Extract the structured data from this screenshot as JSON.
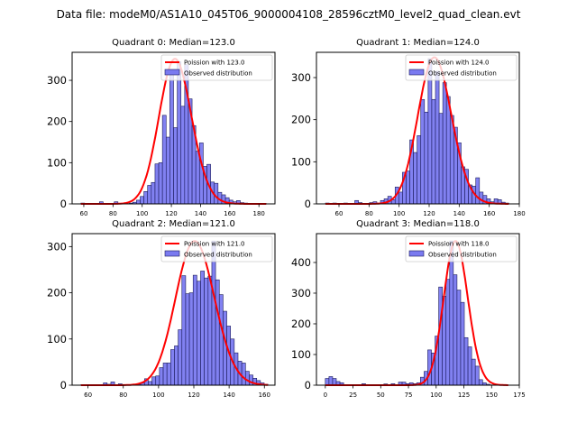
{
  "figure": {
    "suptitle": "Data file: modeM0/AS1A10_045T06_9000004108_28596cztM0_level2_quad_clean.evt"
  },
  "colors": {
    "bar_fill": "#7a7af0",
    "bar_edge": "#1a1a5a",
    "fit_line": "#ff0000"
  },
  "chart_data": [
    {
      "type": "bar",
      "title": "Quadrant 0: Median=123.0",
      "xlabel": "",
      "ylabel": "",
      "xlim": [
        52,
        191
      ],
      "ylim": [
        0,
        368
      ],
      "xticks": [
        60,
        80,
        100,
        120,
        140,
        160,
        180
      ],
      "yticks": [
        0,
        100,
        200,
        300
      ],
      "legend": {
        "position": "top-right",
        "entries": [
          "Poission with 123.0",
          "Observed distribution"
        ]
      },
      "grid": false,
      "bin_start": 58,
      "bin_width": 2.54,
      "bins": [
        2,
        0,
        0,
        0,
        0,
        5,
        0,
        0,
        0,
        5,
        0,
        0,
        0,
        2,
        4,
        9,
        18,
        30,
        45,
        52,
        97,
        100,
        215,
        162,
        315,
        185,
        345,
        237,
        338,
        255,
        190,
        128,
        148,
        91,
        96,
        53,
        50,
        28,
        22,
        15,
        9,
        5,
        8,
        3,
        2,
        1,
        0,
        0,
        1,
        1
      ],
      "poisson_mean": 123.0,
      "poisson_scale": 352
    },
    {
      "type": "bar",
      "title": "Quadrant 1: Median=124.0",
      "xlabel": "",
      "ylabel": "",
      "xlim": [
        45,
        180
      ],
      "ylim": [
        0,
        360
      ],
      "xticks": [
        60,
        80,
        100,
        120,
        140,
        160,
        180
      ],
      "yticks": [
        0,
        100,
        200,
        300
      ],
      "legend": {
        "position": "top-right",
        "entries": [
          "Poission with 124.0",
          "Observed distribution"
        ]
      },
      "grid": false,
      "bin_start": 51,
      "bin_width": 2.44,
      "bins": [
        2,
        0,
        2,
        0,
        1,
        2,
        0,
        0,
        8,
        3,
        0,
        0,
        3,
        5,
        2,
        8,
        12,
        18,
        10,
        40,
        28,
        75,
        78,
        152,
        122,
        162,
        248,
        218,
        345,
        248,
        315,
        215,
        288,
        255,
        210,
        182,
        145,
        88,
        82,
        45,
        42,
        62,
        28,
        20,
        12,
        5,
        12,
        10,
        4,
        2
      ],
      "poisson_mean": 124.0,
      "poisson_scale": 348
    },
    {
      "type": "bar",
      "title": "Quadrant 2: Median=121.0",
      "xlabel": "",
      "ylabel": "",
      "xlim": [
        51,
        166
      ],
      "ylim": [
        0,
        328
      ],
      "xticks": [
        60,
        80,
        100,
        120,
        140,
        160
      ],
      "yticks": [
        0,
        100,
        200,
        300
      ],
      "legend": {
        "position": "top-right",
        "entries": [
          "Poission with 121.0",
          "Observed distribution"
        ]
      },
      "grid": false,
      "bin_start": 56,
      "bin_width": 2.12,
      "bins": [
        1,
        0,
        0,
        0,
        0,
        0,
        5,
        2,
        7,
        0,
        3,
        0,
        0,
        0,
        0,
        2,
        5,
        14,
        8,
        18,
        20,
        38,
        48,
        48,
        77,
        85,
        120,
        237,
        198,
        200,
        238,
        225,
        247,
        232,
        236,
        312,
        228,
        196,
        160,
        128,
        100,
        70,
        52,
        48,
        30,
        22,
        15,
        10,
        5,
        2
      ],
      "poisson_mean": 121.0,
      "poisson_scale": 312
    },
    {
      "type": "bar",
      "title": "Quadrant 3: Median=118.0",
      "xlabel": "",
      "ylabel": "",
      "xlim": [
        -8,
        175
      ],
      "ylim": [
        0,
        494
      ],
      "xticks": [
        0,
        25,
        50,
        75,
        100,
        125,
        150,
        175
      ],
      "yticks": [
        0,
        100,
        200,
        300,
        400
      ],
      "legend": {
        "position": "top-right",
        "entries": [
          "Poission with 118.0",
          "Observed distribution"
        ]
      },
      "grid": false,
      "bin_start": 0,
      "bin_width": 3.3,
      "bins": [
        22,
        28,
        22,
        12,
        8,
        2,
        1,
        0,
        0,
        0,
        5,
        0,
        0,
        0,
        0,
        0,
        4,
        2,
        5,
        0,
        10,
        10,
        5,
        8,
        5,
        8,
        26,
        45,
        115,
        105,
        160,
        320,
        290,
        345,
        470,
        360,
        310,
        270,
        155,
        125,
        85,
        62,
        18,
        8,
        3,
        1,
        1,
        0,
        0,
        0
      ],
      "poisson_mean": 118.0,
      "poisson_scale": 470
    }
  ]
}
